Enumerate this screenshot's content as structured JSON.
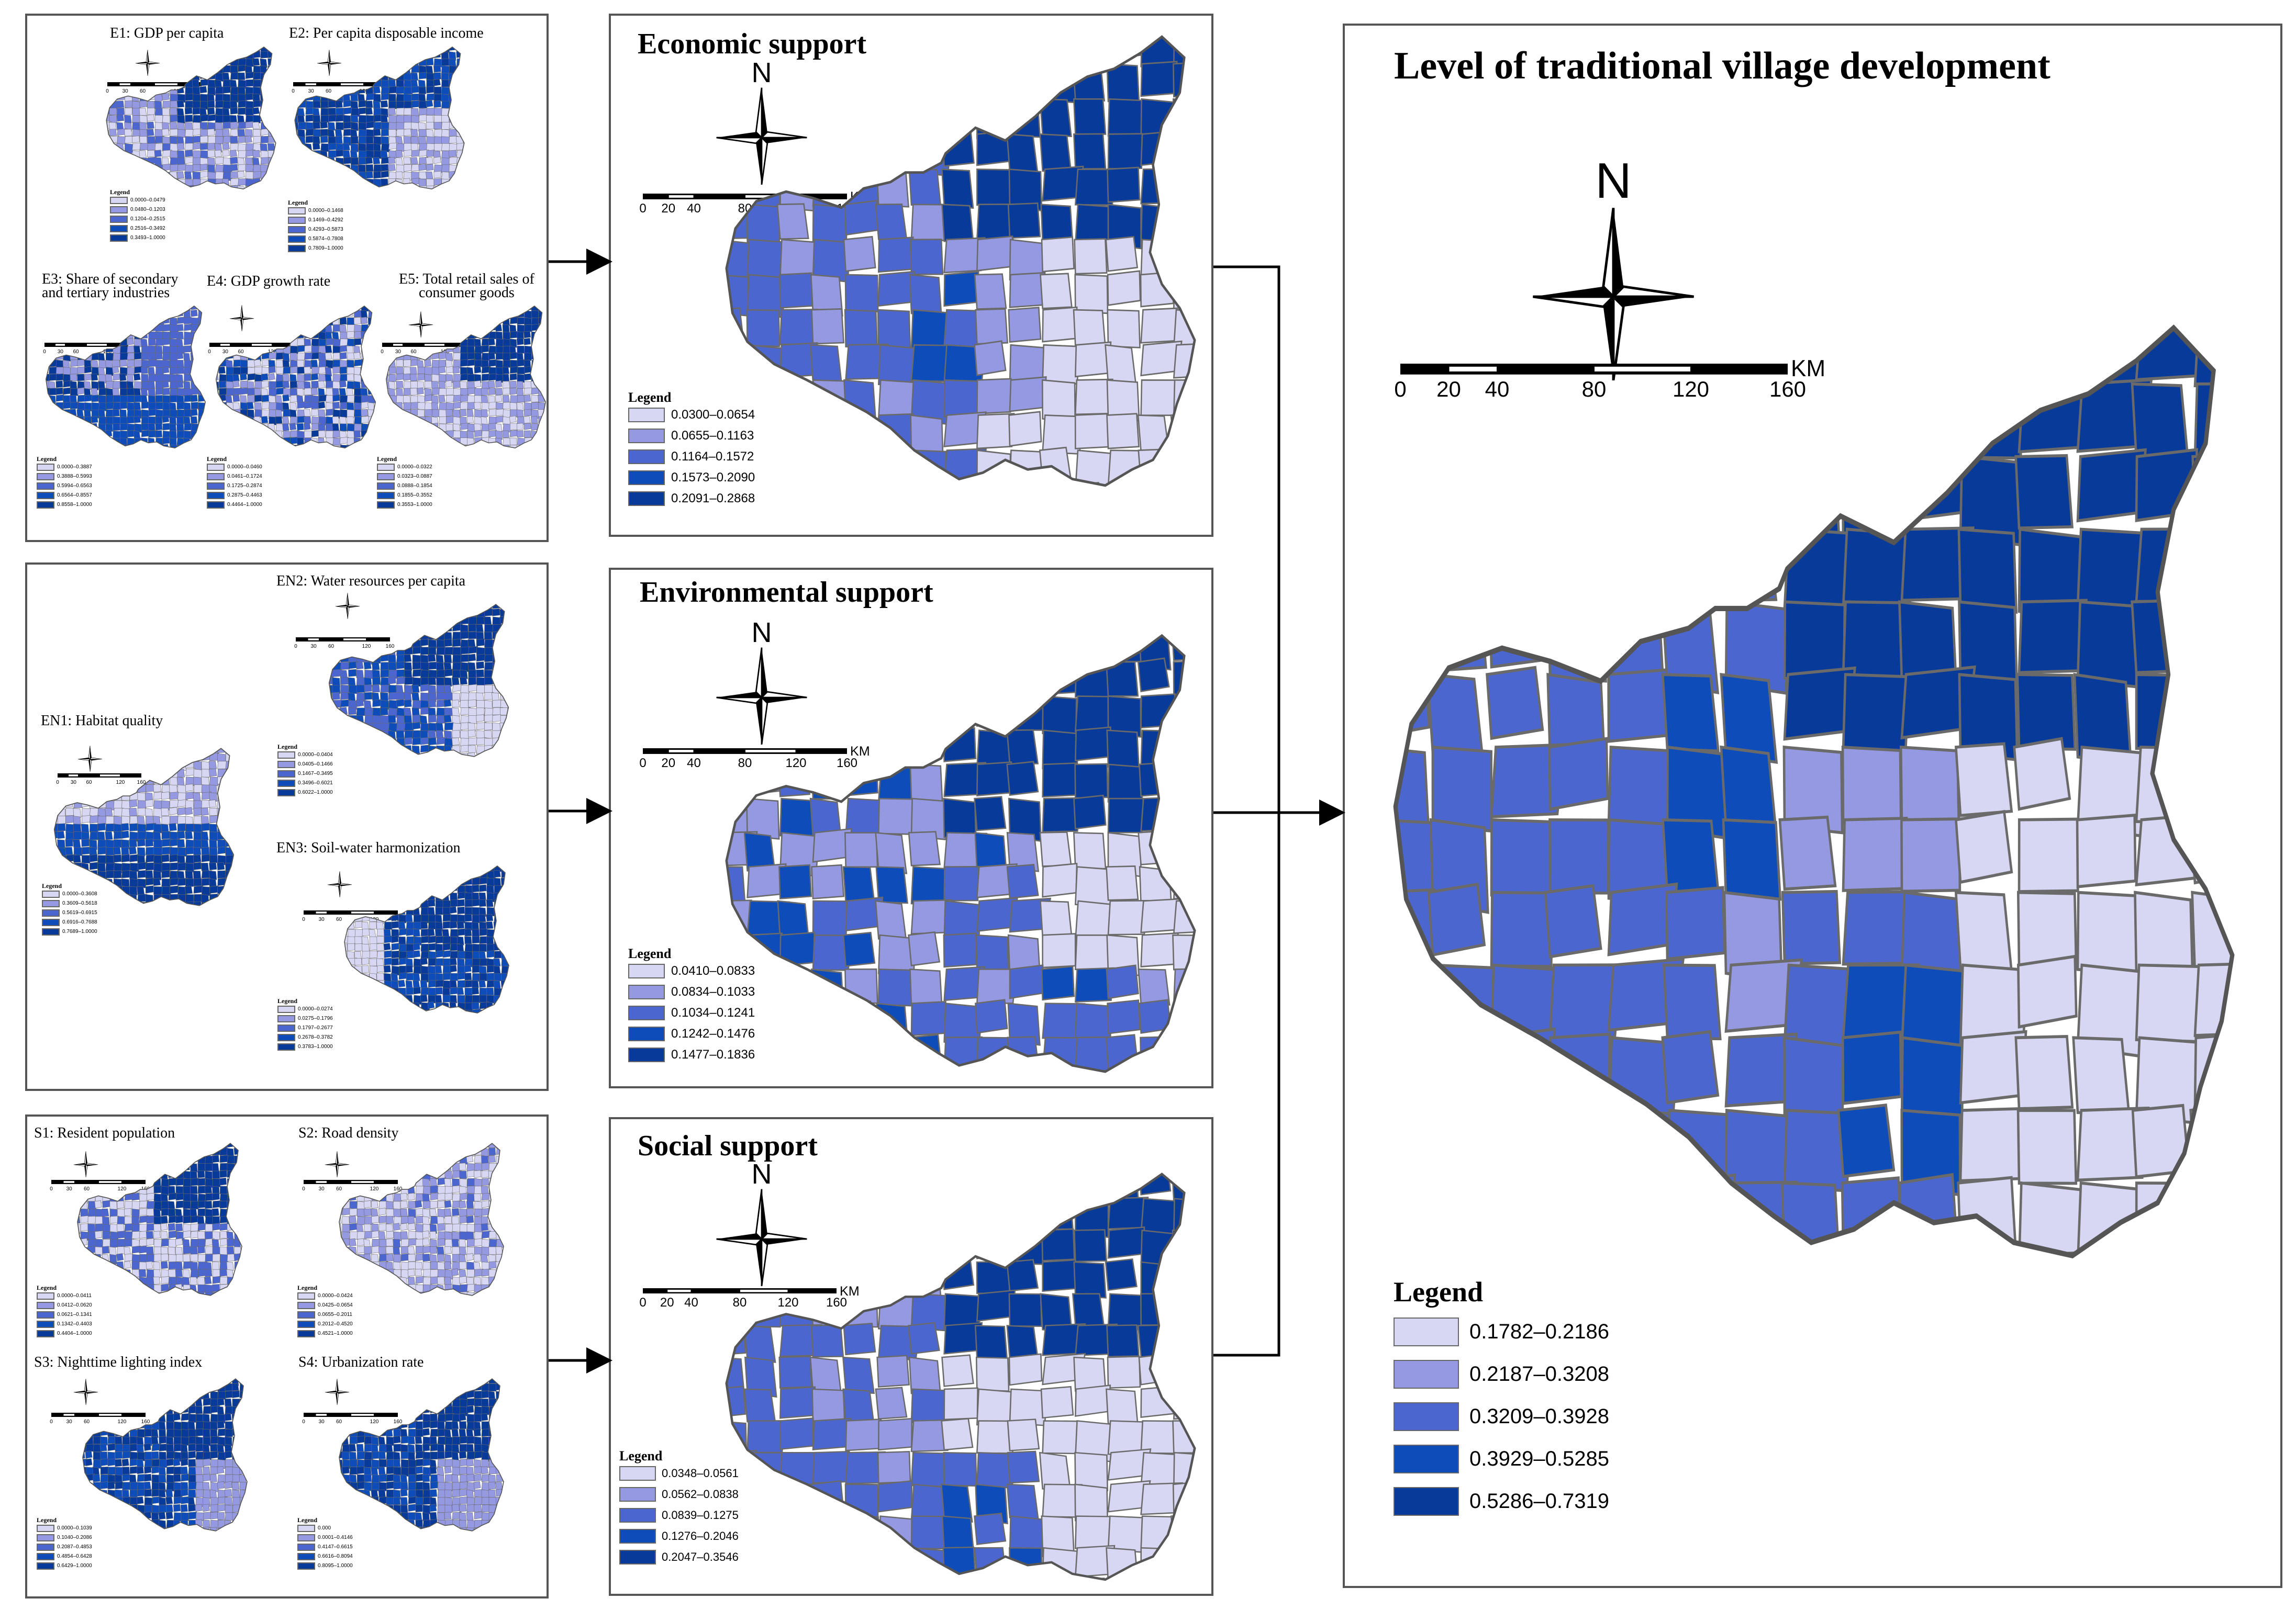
{
  "colors": {
    "c1": "#d7d7f3",
    "c2": "#9599e2",
    "c3": "#4c66cf",
    "c4": "#0d4cb9",
    "c5": "#083a99",
    "boundary": "#6a6a6a"
  },
  "common": {
    "north": "N",
    "km": "KM",
    "scale_ticks": [
      "0",
      "20",
      "40",
      "80",
      "120",
      "160"
    ],
    "small_scale_ticks": [
      "0",
      "30",
      "60",
      "120",
      "160"
    ],
    "legend": "Legend"
  },
  "economic_indicators": [
    {
      "label": "E1: GDP per capita",
      "legend": [
        "0.0000–0.0479",
        "0.0480–0.1203",
        "0.1204–0.2515",
        "0.2516–0.3492",
        "0.3493–1.0000"
      ]
    },
    {
      "label": "E2: Per capita disposable income",
      "legend": [
        "0.0000–0.1468",
        "0.1469–0.4292",
        "0.4293–0.5873",
        "0.5874–0.7808",
        "0.7809–1.0000"
      ]
    },
    {
      "label_line1": "E3: Share of secondary",
      "label_line2": "and tertiary industries",
      "legend": [
        "0.0000–0.3887",
        "0.3888–0.5993",
        "0.5994–0.6563",
        "0.6564–0.8557",
        "0.8558–1.0000"
      ]
    },
    {
      "label": "E4: GDP growth rate",
      "legend": [
        "0.0000–0.0460",
        "0.0461–0.1724",
        "0.1725–0.2874",
        "0.2875–0.4463",
        "0.4464–1.0000"
      ]
    },
    {
      "label_line1": "E5: Total retail sales of",
      "label_line2": "consumer goods",
      "legend": [
        "0.0000–0.0322",
        "0.0323–0.0887",
        "0.0888–0.1854",
        "0.1855–0.3552",
        "0.3553–1.0000"
      ]
    }
  ],
  "environmental_indicators": [
    {
      "label": "EN1: Habitat quality",
      "legend": [
        "0.0000–0.3608",
        "0.3609–0.5618",
        "0.5619–0.6915",
        "0.6916–0.7688",
        "0.7689–1.0000"
      ]
    },
    {
      "label": "EN2: Water resources per capita",
      "legend": [
        "0.0000–0.0404",
        "0.0405–0.1466",
        "0.1467–0.3495",
        "0.3496–0.6021",
        "0.6022–1.0000"
      ]
    },
    {
      "label": "EN3: Soil-water harmonization",
      "legend": [
        "0.0000–0.0274",
        "0.0275–0.1796",
        "0.1797–0.2677",
        "0.2678–0.3782",
        "0.3783–1.0000"
      ]
    }
  ],
  "social_indicators": [
    {
      "label": "S1: Resident population",
      "legend": [
        "0.0000–0.0411",
        "0.0412–0.0620",
        "0.0621–0.1341",
        "0.1342–0.4403",
        "0.4404–1.0000"
      ]
    },
    {
      "label": "S2: Road density",
      "legend": [
        "0.0000–0.0424",
        "0.0425–0.0654",
        "0.0655–0.2011",
        "0.2012–0.4520",
        "0.4521–1.0000"
      ]
    },
    {
      "label": "S3: Nighttime lighting index",
      "legend": [
        "0.0000–0.1039",
        "0.1040–0.2086",
        "0.2087–0.4853",
        "0.4854–0.6428",
        "0.6429–1.0000"
      ]
    },
    {
      "label": "S4: Urbanization rate",
      "legend": [
        "0.000",
        "0.0001–0.4146",
        "0.4147–0.6615",
        "0.6616–0.8094",
        "0.8095–1.0000"
      ]
    }
  ],
  "economic_support": {
    "title": "Economic support",
    "legend": [
      "0.0300–0.0654",
      "0.0655–0.1163",
      "0.1164–0.1572",
      "0.1573–0.2090",
      "0.2091–0.2868"
    ]
  },
  "environmental_support": {
    "title": "Environmental support",
    "legend": [
      "0.0410–0.0833",
      "0.0834–0.1033",
      "0.1034–0.1241",
      "0.1242–0.1476",
      "0.1477–0.1836"
    ]
  },
  "social_support": {
    "title": "Social support",
    "legend": [
      "0.0348–0.0561",
      "0.0562–0.0838",
      "0.0839–0.1275",
      "0.1276–0.2046",
      "0.2047–0.3546"
    ]
  },
  "development": {
    "title": "Level of traditional village development",
    "legend": [
      "0.1782–0.2186",
      "0.2187–0.3208",
      "0.3209–0.3928",
      "0.3929–0.5285",
      "0.5286–0.7319"
    ]
  }
}
